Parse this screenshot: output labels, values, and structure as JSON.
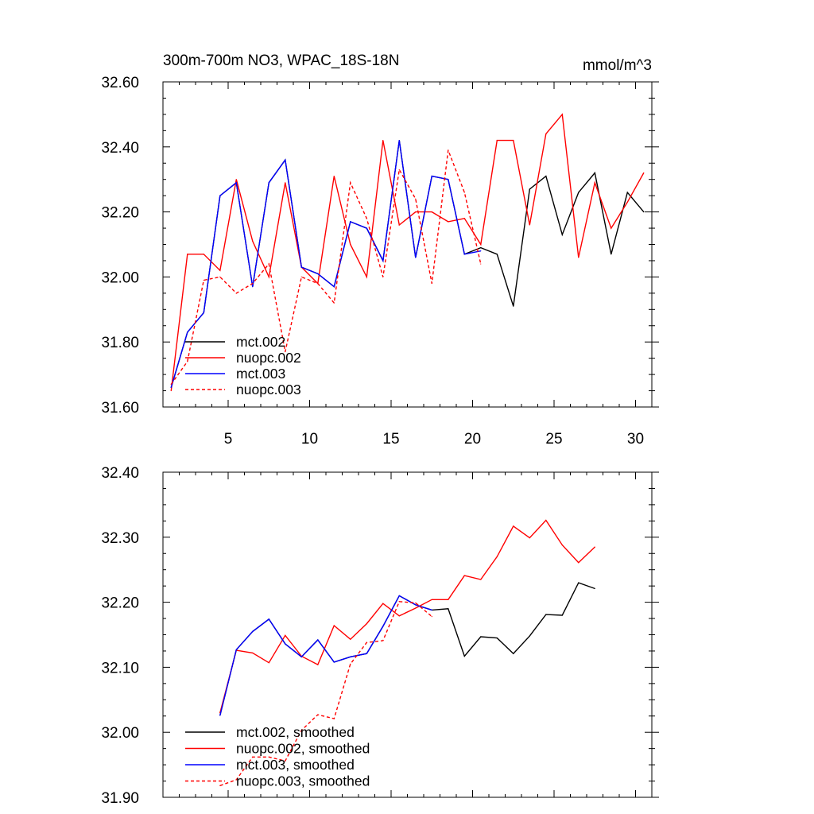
{
  "chart_data": [
    {
      "type": "line",
      "title": "300m-700m NO3, WPAC_18S-18N",
      "units": "mmol/m^3",
      "xlabel": "",
      "ylabel": "",
      "xlim": [
        1,
        31
      ],
      "ylim": [
        31.6,
        32.6
      ],
      "x_ticks": [
        5,
        10,
        15,
        20,
        25,
        30
      ],
      "x_tick_labels": [
        "5",
        "10",
        "15",
        "20",
        "25",
        "30"
      ],
      "y_ticks": [
        31.6,
        31.8,
        32.0,
        32.2,
        32.4,
        32.6
      ],
      "y_tick_labels": [
        "31.60",
        "31.80",
        "32.00",
        "32.20",
        "32.40",
        "32.60"
      ],
      "legend_position": "bottom-left",
      "series": [
        {
          "name": "mct.002",
          "color": "#000000",
          "dash": "solid",
          "x": [
            1.5,
            2.5,
            3.5,
            4.5,
            5.5,
            6.5,
            7.5,
            8.5,
            9.5,
            10.5,
            11.5,
            12.5,
            13.5,
            14.5,
            15.5,
            16.5,
            17.5,
            18.5,
            19.5,
            20.5,
            21.5,
            22.5,
            23.5,
            24.5,
            25.5,
            26.5,
            27.5,
            28.5,
            29.5,
            30.5
          ],
          "y": [
            31.66,
            31.83,
            31.89,
            32.25,
            32.29,
            31.97,
            32.29,
            32.36,
            32.03,
            32.01,
            31.97,
            32.17,
            32.15,
            32.05,
            32.42,
            32.06,
            32.31,
            32.3,
            32.07,
            32.09,
            32.07,
            31.91,
            32.27,
            32.31,
            32.13,
            32.26,
            32.32,
            32.07,
            32.26,
            32.2
          ]
        },
        {
          "name": "nuopc.002",
          "color": "#ff0000",
          "dash": "solid",
          "x": [
            1.5,
            2.5,
            3.5,
            4.5,
            5.5,
            6.5,
            7.5,
            8.5,
            9.5,
            10.5,
            11.5,
            12.5,
            13.5,
            14.5,
            15.5,
            16.5,
            17.5,
            18.5,
            19.5,
            20.5,
            21.5,
            22.5,
            23.5,
            24.5,
            25.5,
            26.5,
            27.5,
            28.5,
            29.5,
            30.5
          ],
          "y": [
            31.65,
            32.07,
            32.07,
            32.02,
            32.3,
            32.11,
            32.0,
            32.29,
            32.03,
            31.98,
            32.31,
            32.1,
            32.0,
            32.42,
            32.16,
            32.2,
            32.2,
            32.17,
            32.18,
            32.1,
            32.42,
            32.42,
            32.16,
            32.44,
            32.5,
            32.06,
            32.29,
            32.15,
            32.23,
            32.32
          ]
        },
        {
          "name": "mct.003",
          "color": "#0000ff",
          "dash": "solid",
          "x": [
            1.5,
            2.5,
            3.5,
            4.5,
            5.5,
            6.5,
            7.5,
            8.5,
            9.5,
            10.5,
            11.5,
            12.5,
            13.5,
            14.5,
            15.5,
            16.5,
            17.5,
            18.5,
            19.5,
            20.5
          ],
          "y": [
            31.66,
            31.83,
            31.89,
            32.25,
            32.29,
            31.97,
            32.29,
            32.36,
            32.03,
            32.01,
            31.97,
            32.17,
            32.15,
            32.05,
            32.42,
            32.06,
            32.31,
            32.3,
            32.07,
            32.08
          ]
        },
        {
          "name": "nuopc.003",
          "color": "#ff0000",
          "dash": "dashed",
          "x": [
            1.5,
            2.5,
            3.5,
            4.5,
            5.5,
            6.5,
            7.5,
            8.5,
            9.5,
            10.5,
            11.5,
            12.5,
            13.5,
            14.5,
            15.5,
            16.5,
            17.5,
            18.5,
            19.5,
            20.5
          ],
          "y": [
            31.67,
            31.74,
            31.99,
            32.0,
            31.95,
            31.98,
            32.04,
            31.77,
            32.0,
            31.98,
            31.92,
            32.29,
            32.18,
            32.0,
            32.33,
            32.24,
            31.98,
            32.39,
            32.26,
            32.04
          ]
        }
      ]
    },
    {
      "type": "line",
      "title": "",
      "xlabel": "",
      "ylabel": "",
      "xlim": [
        1,
        31
      ],
      "ylim": [
        31.9,
        32.4
      ],
      "x_ticks": [
        5,
        10,
        15,
        20,
        25,
        30
      ],
      "x_tick_labels": [],
      "y_ticks": [
        31.9,
        32.0,
        32.1,
        32.2,
        32.3,
        32.4
      ],
      "y_tick_labels": [
        "31.90",
        "32.00",
        "32.10",
        "32.20",
        "32.30",
        "32.40"
      ],
      "legend_position": "bottom-left",
      "series": [
        {
          "name": "mct.002, smoothed",
          "color": "#000000",
          "dash": "solid",
          "x": [
            4.5,
            5.5,
            6.5,
            7.5,
            8.5,
            9.5,
            10.5,
            11.5,
            12.5,
            13.5,
            14.5,
            15.5,
            16.5,
            17.5,
            18.5,
            19.5,
            20.5,
            21.5,
            22.5,
            23.5,
            24.5,
            25.5,
            26.5,
            27.5
          ],
          "y": [
            32.026,
            32.127,
            32.155,
            32.174,
            32.136,
            32.116,
            32.142,
            32.108,
            32.116,
            32.121,
            32.163,
            32.21,
            32.196,
            32.188,
            32.19,
            32.117,
            32.147,
            32.145,
            32.121,
            32.148,
            32.181,
            32.18,
            32.23,
            32.221
          ]
        },
        {
          "name": "nuopc.002, smoothed",
          "color": "#ff0000",
          "dash": "solid",
          "x": [
            4.5,
            5.5,
            6.5,
            7.5,
            8.5,
            9.5,
            10.5,
            11.5,
            12.5,
            13.5,
            14.5,
            15.5,
            16.5,
            17.5,
            18.5,
            19.5,
            20.5,
            21.5,
            22.5,
            23.5,
            24.5,
            25.5,
            26.5,
            27.5
          ],
          "y": [
            32.03,
            32.126,
            32.122,
            32.107,
            32.149,
            32.117,
            32.104,
            32.164,
            32.143,
            32.167,
            32.198,
            32.179,
            32.191,
            32.204,
            32.204,
            32.241,
            32.235,
            32.27,
            32.317,
            32.299,
            32.326,
            32.288,
            32.261,
            32.285
          ]
        },
        {
          "name": "mct.003, smoothed",
          "color": "#0000ff",
          "dash": "solid",
          "x": [
            4.5,
            5.5,
            6.5,
            7.5,
            8.5,
            9.5,
            10.5,
            11.5,
            12.5,
            13.5,
            14.5,
            15.5,
            16.5,
            17.5
          ],
          "y": [
            32.026,
            32.127,
            32.155,
            32.174,
            32.136,
            32.116,
            32.142,
            32.108,
            32.116,
            32.121,
            32.163,
            32.21,
            32.196,
            32.188
          ]
        },
        {
          "name": "nuopc.003, smoothed",
          "color": "#ff0000",
          "dash": "dashed",
          "x": [
            4.5,
            5.5,
            6.5,
            7.5,
            8.5,
            9.5,
            10.5,
            11.5,
            12.5,
            13.5,
            14.5,
            15.5,
            16.5,
            17.5
          ],
          "y": [
            31.918,
            31.927,
            31.962,
            31.962,
            31.956,
            32.003,
            32.027,
            32.021,
            32.105,
            32.138,
            32.141,
            32.201,
            32.199,
            32.178
          ]
        }
      ]
    }
  ]
}
